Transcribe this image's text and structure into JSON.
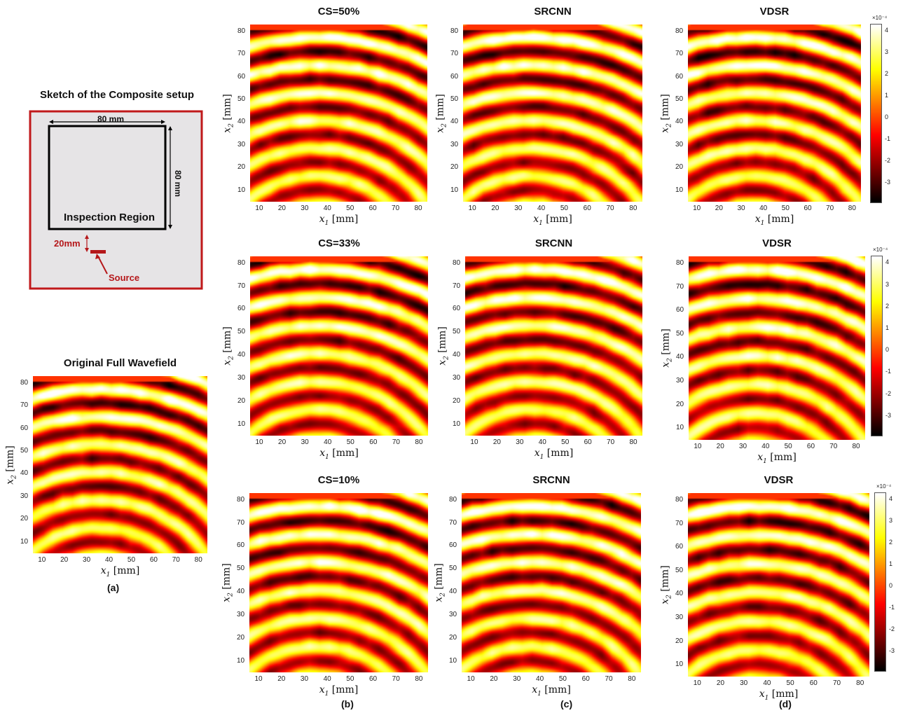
{
  "sketch": {
    "title": "Sketch of the Composite setup",
    "width_label": "80 mm",
    "height_label": "80 mm",
    "region_label": "Inspection Region",
    "offset_label": "20mm",
    "source_label": "Source",
    "colors": {
      "border": "#c0191b",
      "background": "#e6e4e6",
      "annotation": "#b5171a"
    }
  },
  "axis": {
    "xlabel_symbol": "x",
    "xlabel_sub": "1",
    "ylabel_symbol": "x",
    "ylabel_sub": "2",
    "unit": "[mm]",
    "x_ticks": [
      "10",
      "20",
      "30",
      "40",
      "50",
      "60",
      "70",
      "80"
    ],
    "y_ticks": [
      "80",
      "70",
      "60",
      "50",
      "40",
      "30",
      "20",
      "10"
    ]
  },
  "colorbar": {
    "exponent_label": "×10⁻⁴",
    "ticks": [
      "4",
      "3",
      "2",
      "1",
      "0",
      "-1",
      "-2",
      "-3"
    ],
    "colormap": "hot"
  },
  "panels": [
    {
      "title": "Original Full Wavefield"
    },
    {
      "title": "CS=50%"
    },
    {
      "title": "SRCNN"
    },
    {
      "title": "VDSR"
    },
    {
      "title": "CS=33%"
    },
    {
      "title": "SRCNN"
    },
    {
      "title": "VDSR"
    },
    {
      "title": "CS=10%"
    },
    {
      "title": "SRCNN"
    },
    {
      "title": "VDSR"
    }
  ],
  "subfigure_labels": [
    "(a)",
    "(b)",
    "(c)",
    "(d)"
  ]
}
